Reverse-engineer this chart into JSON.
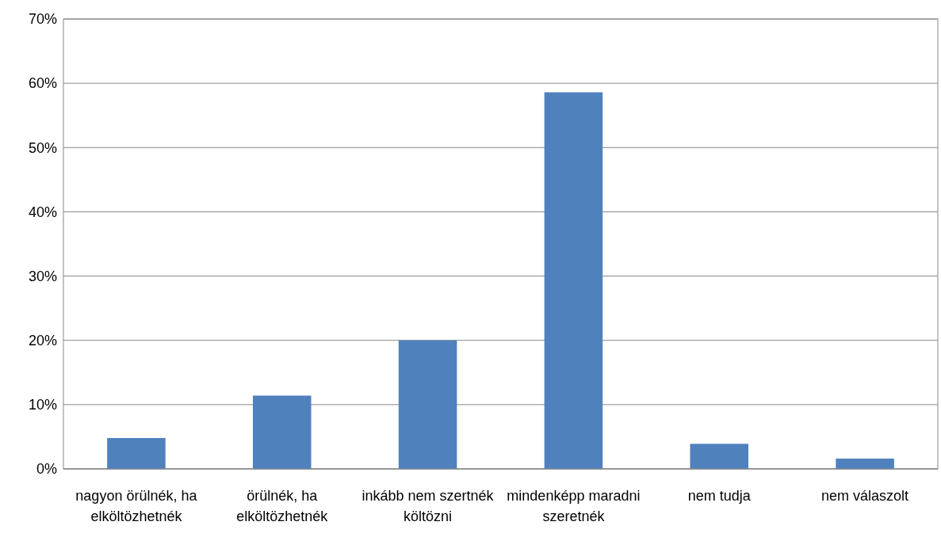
{
  "chart_data": {
    "type": "bar",
    "categories": [
      "nagyon örülnék, ha elköltözhetnék",
      "örülnék, ha elköltözhetnék",
      "inkább nem szertnék költözni",
      "mindenképp maradni szeretnék",
      "nem tudja",
      "nem válaszolt"
    ],
    "values": [
      4.8,
      11.4,
      20,
      58.6,
      3.9,
      1.6
    ],
    "color": "#4f81bd",
    "ylim": [
      0,
      70
    ],
    "yticks": [
      {
        "value": 0,
        "label": "0%"
      },
      {
        "value": 10,
        "label": "10%"
      },
      {
        "value": 20,
        "label": "20%"
      },
      {
        "value": 30,
        "label": "30%"
      },
      {
        "value": 40,
        "label": "40%"
      },
      {
        "value": 50,
        "label": "50%"
      },
      {
        "value": 60,
        "label": "60%"
      },
      {
        "value": 70,
        "label": "70%"
      }
    ],
    "grid": "y"
  }
}
